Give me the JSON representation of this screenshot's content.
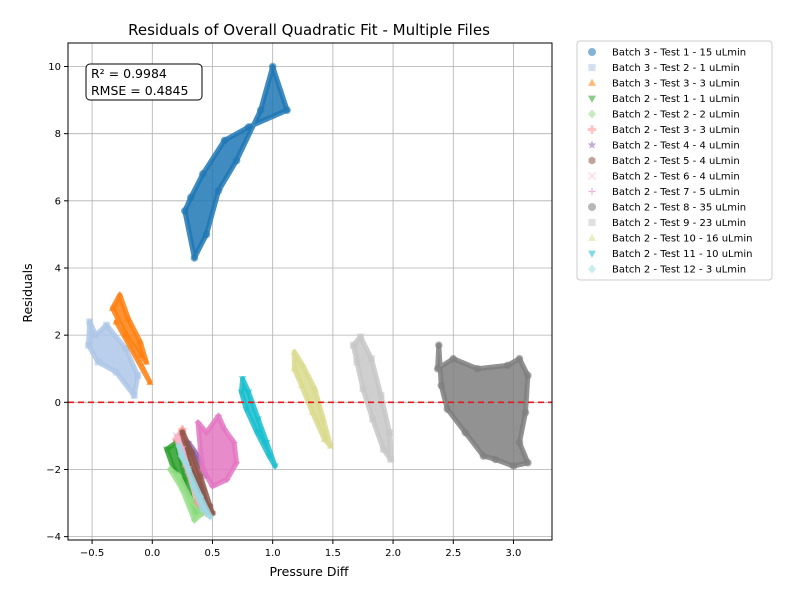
{
  "chart_data": {
    "type": "scatter",
    "title": "Residuals of Overall Quadratic Fit - Multiple Files",
    "xlabel": "Pressure Diff",
    "ylabel": "Residuals",
    "xlim": [
      -0.7,
      3.32
    ],
    "ylim": [
      -4.1,
      10.7
    ],
    "xticks": [
      -0.5,
      0.0,
      0.5,
      1.0,
      1.5,
      2.0,
      2.5,
      3.0
    ],
    "xtick_labels": [
      "−0.5",
      "0.0",
      "0.5",
      "1.0",
      "1.5",
      "2.0",
      "2.5",
      "3.0"
    ],
    "yticks": [
      -4,
      -2,
      0,
      2,
      4,
      6,
      8,
      10
    ],
    "ytick_labels": [
      "−4",
      "−2",
      "0",
      "2",
      "4",
      "6",
      "8",
      "10"
    ],
    "grid": true,
    "reference_line": {
      "y": 0,
      "color": "#e41a1c",
      "style": "dashed"
    },
    "annotation": {
      "lines": [
        "R² = 0.9984",
        "RMSE = 0.4845"
      ]
    },
    "legend_position": "outside-right",
    "series": [
      {
        "name": "Batch 3 - Test 1 - 15 uLmin",
        "marker": "circle",
        "color": "#1f77b4",
        "points": [
          [
            0.27,
            5.7
          ],
          [
            0.35,
            4.3
          ],
          [
            0.45,
            5.0
          ],
          [
            0.55,
            6.3
          ],
          [
            0.7,
            7.2
          ],
          [
            0.9,
            8.7
          ],
          [
            1.0,
            10.0
          ],
          [
            1.12,
            8.7
          ],
          [
            0.8,
            8.2
          ],
          [
            0.6,
            7.8
          ],
          [
            0.42,
            6.8
          ],
          [
            0.32,
            6.1
          ]
        ]
      },
      {
        "name": "Batch 3 - Test 2 - 1 uLmin",
        "marker": "square",
        "color": "#aec7e8",
        "points": [
          [
            -0.52,
            2.4
          ],
          [
            -0.53,
            1.7
          ],
          [
            -0.45,
            1.2
          ],
          [
            -0.3,
            0.9
          ],
          [
            -0.15,
            0.2
          ],
          [
            -0.12,
            0.8
          ],
          [
            -0.22,
            1.6
          ],
          [
            -0.38,
            2.3
          ],
          [
            -0.47,
            2.0
          ]
        ]
      },
      {
        "name": "Batch 3 - Test 3 - 3 uLmin",
        "marker": "triangle-up",
        "color": "#ff7f0e",
        "points": [
          [
            -0.33,
            2.8
          ],
          [
            -0.27,
            3.2
          ],
          [
            -0.2,
            2.5
          ],
          [
            -0.1,
            1.8
          ],
          [
            -0.05,
            1.2
          ],
          [
            -0.1,
            1.4
          ],
          [
            -0.22,
            2.0
          ],
          [
            -0.3,
            2.4
          ],
          [
            -0.02,
            0.6
          ]
        ]
      },
      {
        "name": "Batch 2 - Test 1 - 1 uLmin",
        "marker": "triangle-down",
        "color": "#2ca02c",
        "points": [
          [
            0.12,
            -1.4
          ],
          [
            0.2,
            -1.2
          ],
          [
            0.28,
            -2.3
          ],
          [
            0.35,
            -3.3
          ],
          [
            0.4,
            -3.2
          ],
          [
            0.3,
            -2.8
          ],
          [
            0.18,
            -2.0
          ]
        ]
      },
      {
        "name": "Batch 2 - Test 2 - 2 uLmin",
        "marker": "diamond",
        "color": "#98df8a",
        "points": [
          [
            0.15,
            -2.0
          ],
          [
            0.25,
            -2.6
          ],
          [
            0.35,
            -3.5
          ],
          [
            0.42,
            -3.3
          ],
          [
            0.32,
            -2.9
          ],
          [
            0.22,
            -2.2
          ]
        ]
      },
      {
        "name": "Batch 2 - Test 3 - 3 uLmin",
        "marker": "plus-filled",
        "color": "#ff9896",
        "points": [
          [
            0.2,
            -1.1
          ],
          [
            0.25,
            -0.8
          ],
          [
            0.33,
            -1.6
          ],
          [
            0.42,
            -2.6
          ],
          [
            0.45,
            -3.3
          ],
          [
            0.38,
            -3.0
          ],
          [
            0.28,
            -1.9
          ]
        ]
      },
      {
        "name": "Batch 2 - Test 4 - 4 uLmin",
        "marker": "star",
        "color": "#9467bd",
        "points": [
          [
            0.3,
            -1.2
          ],
          [
            0.38,
            -1.6
          ],
          [
            0.45,
            -2.2
          ]
        ]
      },
      {
        "name": "Batch 2 - Test 5 - 4 uLmin",
        "marker": "hexagon",
        "color": "#8c564b",
        "points": [
          [
            0.25,
            -0.9
          ],
          [
            0.33,
            -1.5
          ],
          [
            0.4,
            -2.2
          ],
          [
            0.48,
            -3.1
          ],
          [
            0.5,
            -3.3
          ],
          [
            0.42,
            -2.8
          ],
          [
            0.3,
            -1.8
          ]
        ]
      },
      {
        "name": "Batch 2 - Test 6 - 4 uLmin",
        "marker": "x",
        "color": "#f7b6d2",
        "points": [
          [
            0.2,
            -1.0
          ],
          [
            0.25,
            -1.4
          ],
          [
            0.3,
            -2.0
          ]
        ]
      },
      {
        "name": "Batch 2 - Test 7 - 5 uLmin",
        "marker": "plus",
        "color": "#e377c2",
        "points": [
          [
            0.38,
            -0.6
          ],
          [
            0.45,
            -0.9
          ],
          [
            0.55,
            -0.4
          ],
          [
            0.6,
            -0.8
          ],
          [
            0.68,
            -1.2
          ],
          [
            0.7,
            -1.8
          ],
          [
            0.62,
            -2.3
          ],
          [
            0.5,
            -2.5
          ],
          [
            0.42,
            -2.0
          ],
          [
            0.4,
            -1.4
          ]
        ]
      },
      {
        "name": "Batch 2 - Test 8 - 35 uLmin",
        "marker": "circle",
        "color": "#7f7f7f",
        "points": [
          [
            2.38,
            1.7
          ],
          [
            2.37,
            1.0
          ],
          [
            2.5,
            1.3
          ],
          [
            2.7,
            1.0
          ],
          [
            2.95,
            1.1
          ],
          [
            3.05,
            1.3
          ],
          [
            3.12,
            0.8
          ],
          [
            3.1,
            -0.3
          ],
          [
            3.05,
            -1.2
          ],
          [
            3.12,
            -1.8
          ],
          [
            3.0,
            -1.9
          ],
          [
            2.85,
            -1.7
          ],
          [
            2.75,
            -1.6
          ],
          [
            2.6,
            -0.9
          ],
          [
            2.45,
            -0.2
          ],
          [
            2.4,
            0.5
          ]
        ]
      },
      {
        "name": "Batch 2 - Test 9 - 23 uLmin",
        "marker": "square",
        "color": "#c7c7c7",
        "points": [
          [
            1.67,
            1.7
          ],
          [
            1.73,
            1.95
          ],
          [
            1.82,
            1.3
          ],
          [
            1.9,
            0.2
          ],
          [
            1.97,
            -0.9
          ],
          [
            1.98,
            -1.7
          ],
          [
            1.92,
            -1.4
          ],
          [
            1.83,
            -0.5
          ],
          [
            1.75,
            0.4
          ],
          [
            1.7,
            1.2
          ]
        ]
      },
      {
        "name": "Batch 2 - Test 10 - 16 uLmin",
        "marker": "triangle-up",
        "color": "#dbdb8d",
        "points": [
          [
            1.18,
            1.5
          ],
          [
            1.25,
            1.1
          ],
          [
            1.35,
            0.4
          ],
          [
            1.42,
            -0.5
          ],
          [
            1.48,
            -1.3
          ],
          [
            1.43,
            -1.1
          ],
          [
            1.33,
            -0.3
          ],
          [
            1.24,
            0.5
          ],
          [
            1.18,
            1.0
          ]
        ]
      },
      {
        "name": "Batch 2 - Test 11 - 10 uLmin",
        "marker": "triangle-down",
        "color": "#17becf",
        "points": [
          [
            0.75,
            0.7
          ],
          [
            0.8,
            0.3
          ],
          [
            0.88,
            -0.5
          ],
          [
            0.95,
            -1.2
          ],
          [
            1.02,
            -1.9
          ],
          [
            0.97,
            -1.6
          ],
          [
            0.87,
            -0.9
          ],
          [
            0.78,
            -0.2
          ],
          [
            0.74,
            0.3
          ]
        ]
      },
      {
        "name": "Batch 2 - Test 12 - 3 uLmin",
        "marker": "diamond",
        "color": "#9edae5",
        "points": [
          [
            0.22,
            -1.3
          ],
          [
            0.28,
            -1.8
          ],
          [
            0.34,
            -2.5
          ],
          [
            0.42,
            -3.2
          ],
          [
            0.48,
            -3.4
          ],
          [
            0.4,
            -2.8
          ],
          [
            0.3,
            -2.0
          ],
          [
            0.24,
            -1.6
          ]
        ]
      }
    ]
  }
}
